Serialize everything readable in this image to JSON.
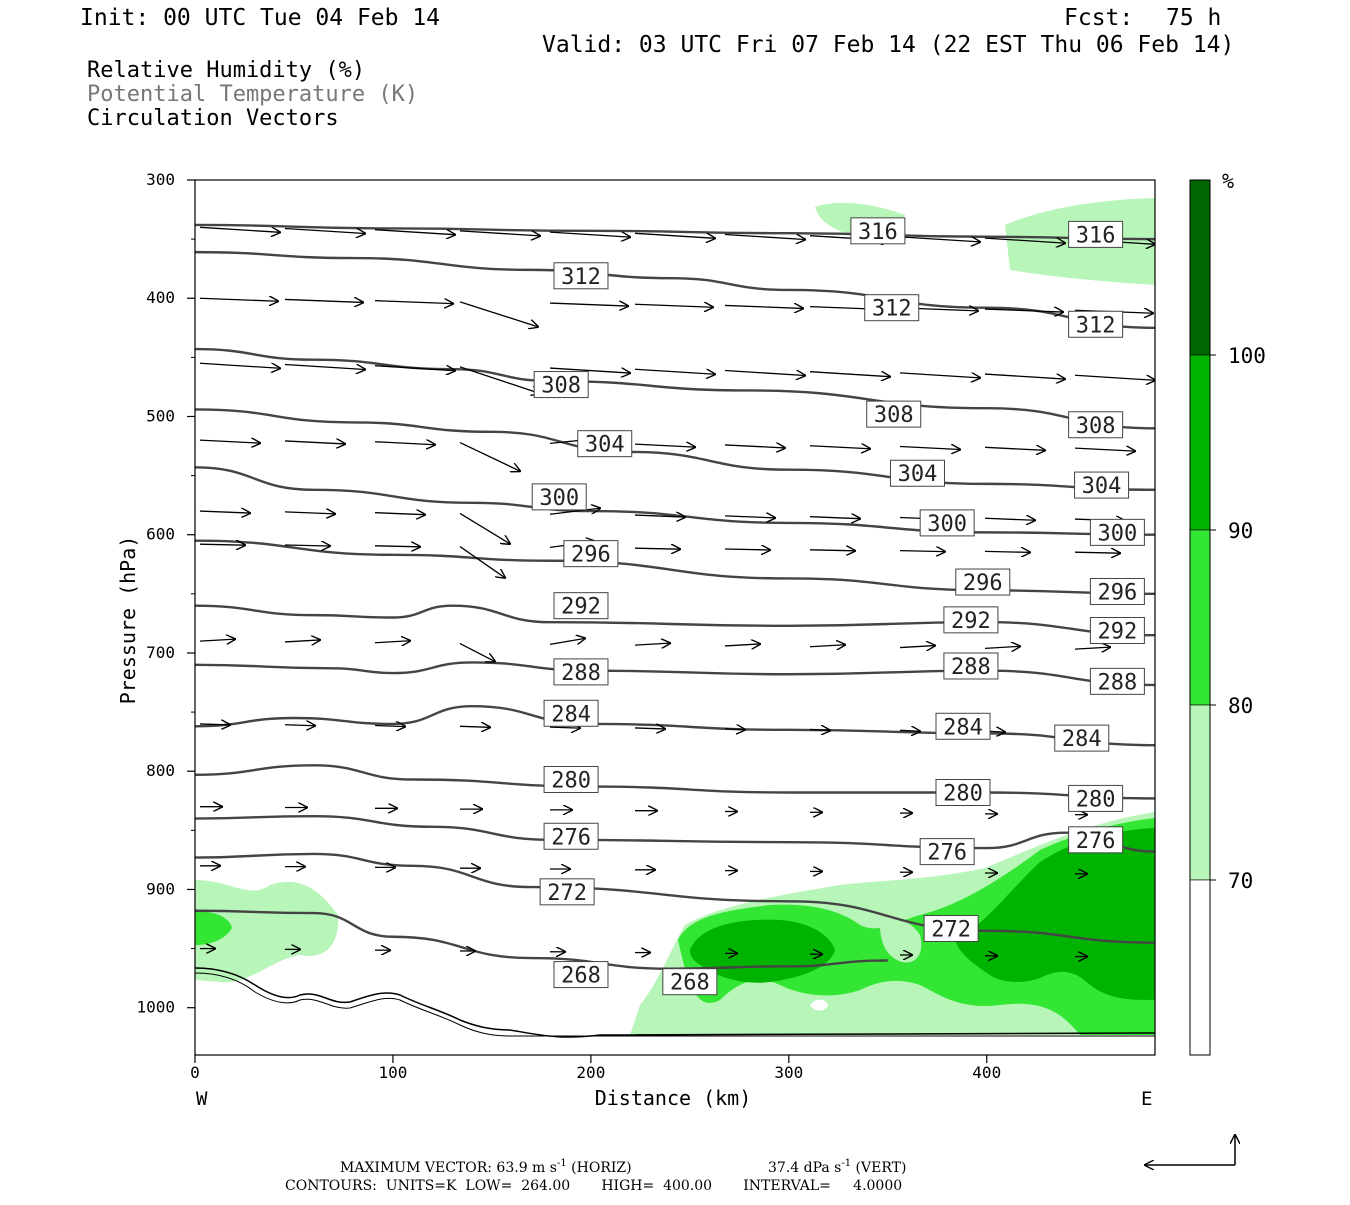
{
  "header": {
    "init": "Init: 00 UTC Tue 04 Feb 14",
    "fcst_label": "Fcst:",
    "fcst_value": "75 h",
    "valid": "Valid: 03 UTC Fri 07 Feb 14 (22 EST Thu 06 Feb 14)"
  },
  "fields": [
    {
      "label": "Relative Humidity (%)",
      "color": "#000000"
    },
    {
      "label": "Potential Temperature (K)",
      "color": "#777777"
    },
    {
      "label": "Circulation Vectors",
      "color": "#000000"
    }
  ],
  "colorbar": {
    "unit": "%",
    "labels": [
      "100",
      "90",
      "80",
      "70"
    ],
    "colors": [
      "#006600",
      "#00b300",
      "#33e633",
      "#b8f5b8",
      "#ffffff"
    ]
  },
  "footer": {
    "max_vector": "MAXIMUM VECTOR:  63.9 m s",
    "exp1": "-1",
    "horiz": " (HORIZ)",
    "vert_val": "37.4 dPa s",
    "exp2": "-1",
    "vert": " (VERT)",
    "contours": "CONTOURS:  UNITS=K  LOW=  264.00       HIGH=  400.00       INTERVAL=     4.0000"
  },
  "chart_data": {
    "type": "contour",
    "xlabel": "Distance (km)",
    "ylabel": "Pressure (hPa)",
    "xlim": [
      0,
      485
    ],
    "ylim": [
      1040,
      300
    ],
    "x_ticks": [
      0,
      100,
      200,
      300,
      400
    ],
    "x_end_labels": {
      "left": "W",
      "right": "E"
    },
    "y_ticks": [
      300,
      400,
      500,
      600,
      700,
      800,
      900,
      1000
    ],
    "theta_isentropes": [
      {
        "level": 316,
        "points": [
          [
            0,
            338
          ],
          [
            100,
            341
          ],
          [
            200,
            343
          ],
          [
            300,
            345
          ],
          [
            400,
            348
          ],
          [
            485,
            350
          ]
        ],
        "labels": [
          [
            345,
            343
          ],
          [
            455,
            346
          ]
        ]
      },
      {
        "level": 312,
        "points": [
          [
            0,
            361
          ],
          [
            80,
            366
          ],
          [
            170,
            376
          ],
          [
            240,
            383
          ],
          [
            300,
            393
          ],
          [
            400,
            408
          ],
          [
            485,
            425
          ]
        ],
        "labels": [
          [
            195,
            381
          ],
          [
            352,
            408
          ],
          [
            455,
            422
          ]
        ]
      },
      {
        "level": 308,
        "points": [
          [
            0,
            443
          ],
          [
            60,
            452
          ],
          [
            130,
            460
          ],
          [
            180,
            470
          ],
          [
            280,
            478
          ],
          [
            400,
            493
          ],
          [
            485,
            510
          ]
        ],
        "labels": [
          [
            185,
            473
          ],
          [
            353,
            498
          ],
          [
            455,
            507
          ]
        ]
      },
      {
        "level": 304,
        "points": [
          [
            0,
            494
          ],
          [
            80,
            505
          ],
          [
            150,
            513
          ],
          [
            220,
            530
          ],
          [
            300,
            545
          ],
          [
            400,
            557
          ],
          [
            485,
            562
          ]
        ],
        "labels": [
          [
            207,
            523
          ],
          [
            365,
            548
          ],
          [
            458,
            558
          ]
        ]
      },
      {
        "level": 300,
        "points": [
          [
            0,
            543
          ],
          [
            60,
            562
          ],
          [
            140,
            573
          ],
          [
            200,
            580
          ],
          [
            300,
            590
          ],
          [
            400,
            598
          ],
          [
            485,
            600
          ]
        ],
        "labels": [
          [
            184,
            568
          ],
          [
            380,
            590
          ],
          [
            466,
            598
          ]
        ]
      },
      {
        "level": 296,
        "points": [
          [
            0,
            605
          ],
          [
            100,
            617
          ],
          [
            180,
            622
          ],
          [
            300,
            637
          ],
          [
            400,
            647
          ],
          [
            485,
            650
          ]
        ],
        "labels": [
          [
            200,
            616
          ],
          [
            398,
            640
          ],
          [
            466,
            648
          ]
        ]
      },
      {
        "level": 292,
        "points": [
          [
            0,
            660
          ],
          [
            60,
            668
          ],
          [
            100,
            670
          ],
          [
            130,
            660
          ],
          [
            180,
            674
          ],
          [
            300,
            677
          ],
          [
            400,
            674
          ],
          [
            485,
            685
          ]
        ],
        "labels": [
          [
            195,
            660
          ],
          [
            392,
            672
          ],
          [
            466,
            681
          ]
        ]
      },
      {
        "level": 288,
        "points": [
          [
            0,
            710
          ],
          [
            70,
            713
          ],
          [
            100,
            717
          ],
          [
            140,
            708
          ],
          [
            200,
            715
          ],
          [
            300,
            718
          ],
          [
            400,
            715
          ],
          [
            485,
            727
          ]
        ],
        "labels": [
          [
            195,
            716
          ],
          [
            392,
            711
          ],
          [
            466,
            724
          ]
        ]
      },
      {
        "level": 284,
        "points": [
          [
            0,
            762
          ],
          [
            50,
            755
          ],
          [
            100,
            760
          ],
          [
            140,
            745
          ],
          [
            200,
            760
          ],
          [
            300,
            765
          ],
          [
            400,
            768
          ],
          [
            485,
            778
          ]
        ],
        "labels": [
          [
            190,
            751
          ],
          [
            388,
            762
          ],
          [
            448,
            772
          ]
        ]
      },
      {
        "level": 280,
        "points": [
          [
            0,
            803
          ],
          [
            60,
            795
          ],
          [
            110,
            807
          ],
          [
            200,
            813
          ],
          [
            300,
            818
          ],
          [
            400,
            818
          ],
          [
            485,
            823
          ]
        ],
        "labels": [
          [
            190,
            807
          ],
          [
            388,
            818
          ],
          [
            455,
            823
          ]
        ]
      },
      {
        "level": 276,
        "points": [
          [
            0,
            840
          ],
          [
            60,
            838
          ],
          [
            120,
            847
          ],
          [
            180,
            858
          ],
          [
            300,
            860
          ],
          [
            400,
            865
          ],
          [
            440,
            852
          ],
          [
            485,
            868
          ]
        ],
        "labels": [
          [
            190,
            855
          ],
          [
            380,
            868
          ],
          [
            455,
            858
          ]
        ]
      },
      {
        "level": 272,
        "points": [
          [
            0,
            873
          ],
          [
            60,
            870
          ],
          [
            110,
            880
          ],
          [
            170,
            898
          ],
          [
            300,
            910
          ],
          [
            400,
            935
          ],
          [
            485,
            945
          ]
        ],
        "labels": [
          [
            188,
            902
          ],
          [
            382,
            933
          ]
        ]
      },
      {
        "level": 268,
        "points": [
          [
            0,
            918
          ],
          [
            60,
            920
          ],
          [
            100,
            940
          ],
          [
            170,
            958
          ],
          [
            240,
            967
          ],
          [
            300,
            965
          ],
          [
            350,
            960
          ]
        ],
        "labels": [
          [
            195,
            972
          ],
          [
            250,
            978
          ]
        ]
      }
    ],
    "arrow_rows_hPa": [
      340,
      400,
      455,
      520,
      580,
      605,
      690,
      760,
      830,
      880,
      950
    ],
    "rh_shading_levels": [
      70,
      80,
      90,
      100
    ]
  }
}
